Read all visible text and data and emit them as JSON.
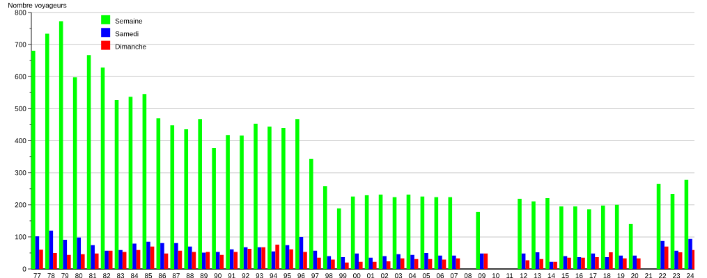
{
  "chart_data": {
    "type": "bar",
    "ylabel": "Nombre voyageurs",
    "categories": [
      "77",
      "78",
      "79",
      "80",
      "81",
      "82",
      "83",
      "84",
      "85",
      "86",
      "87",
      "88",
      "89",
      "90",
      "91",
      "92",
      "93",
      "94",
      "95",
      "96",
      "97",
      "98",
      "99",
      "00",
      "01",
      "02",
      "03",
      "04",
      "05",
      "06",
      "07",
      "08",
      "09",
      "10",
      "11",
      "12",
      "13",
      "14",
      "15",
      "16",
      "17",
      "18",
      "19",
      "20",
      "21",
      "22",
      "23",
      "24"
    ],
    "series": [
      {
        "name": "Semaine",
        "color": "#00ff00",
        "values": [
          681,
          734,
          773,
          598,
          667,
          628,
          527,
          537,
          546,
          470,
          448,
          436,
          468,
          377,
          418,
          416,
          453,
          444,
          440,
          468,
          343,
          258,
          189,
          226,
          230,
          232,
          224,
          232,
          226,
          224,
          224,
          null,
          178,
          null,
          null,
          219,
          211,
          221,
          195,
          195,
          186,
          198,
          200,
          141,
          null,
          265,
          234,
          278
        ]
      },
      {
        "name": "Samedi",
        "color": "#0000ff",
        "values": [
          102,
          120,
          91,
          98,
          74,
          57,
          59,
          79,
          85,
          81,
          81,
          70,
          51,
          53,
          61,
          68,
          68,
          55,
          74,
          100,
          57,
          40,
          37,
          48,
          35,
          40,
          46,
          44,
          50,
          42,
          42,
          null,
          48,
          null,
          null,
          48,
          52,
          22,
          40,
          37,
          48,
          37,
          42,
          42,
          null,
          87,
          57,
          94
        ]
      },
      {
        "name": "Dimanche",
        "color": "#ff0000",
        "values": [
          60,
          50,
          44,
          46,
          48,
          57,
          53,
          59,
          70,
          48,
          57,
          53,
          53,
          44,
          53,
          63,
          68,
          76,
          61,
          53,
          35,
          29,
          20,
          22,
          22,
          24,
          33,
          31,
          31,
          29,
          33,
          null,
          48,
          null,
          null,
          27,
          31,
          22,
          35,
          35,
          37,
          52,
          33,
          33,
          null,
          70,
          52,
          59
        ]
      }
    ],
    "ylim": [
      0,
      800
    ],
    "yticks": [
      0,
      {
        "value": 50,
        "label": null
      },
      100,
      {
        "value": 150,
        "label": null
      },
      200,
      {
        "value": 250,
        "label": null
      },
      300,
      {
        "value": 350,
        "label": null
      },
      400,
      {
        "value": 450,
        "label": null
      },
      500,
      {
        "value": 550,
        "label": null
      },
      600,
      {
        "value": 650,
        "label": null
      },
      700,
      {
        "value": 750,
        "label": null
      },
      800
    ],
    "grid": "y",
    "legend": "top left"
  }
}
